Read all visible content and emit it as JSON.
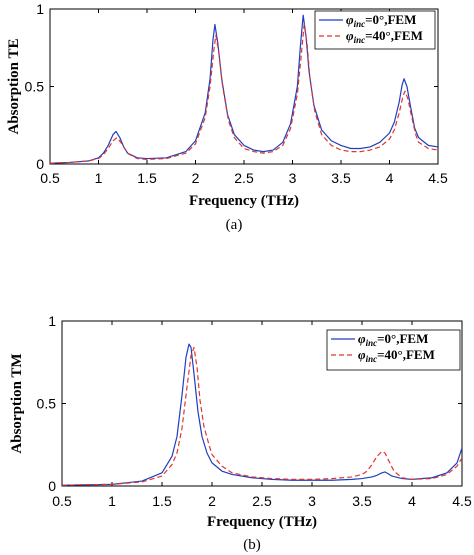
{
  "colors": {
    "series1": "#1f3fbf",
    "series2": "#e0342f",
    "axis": "#000000"
  },
  "chart_data": [
    {
      "type": "line",
      "panel_label": "(a)",
      "xlabel": "Frequency (THz)",
      "ylabel": "Absorption TE",
      "xlim": [
        0.5,
        4.5
      ],
      "ylim": [
        0,
        1
      ],
      "xticks": [
        "0.5",
        "1",
        "1.5",
        "2",
        "2.5",
        "3",
        "3.5",
        "4",
        "4.5"
      ],
      "yticks": [
        "0",
        "0.5",
        "1"
      ],
      "legend_position": "top-right",
      "grid": false,
      "series": [
        {
          "name": "φinc=0°,FEM",
          "legend_symbol": "φ",
          "legend_subscript": "inc",
          "legend_rest": "=0°,FEM",
          "style": "solid",
          "color": "#1f3fbf",
          "x": [
            0.5,
            0.7,
            0.9,
            1.0,
            1.05,
            1.1,
            1.15,
            1.18,
            1.22,
            1.26,
            1.3,
            1.4,
            1.5,
            1.7,
            1.9,
            2.0,
            2.1,
            2.15,
            2.18,
            2.2,
            2.23,
            2.27,
            2.33,
            2.4,
            2.5,
            2.6,
            2.7,
            2.8,
            2.9,
            2.98,
            3.05,
            3.08,
            3.11,
            3.14,
            3.17,
            3.22,
            3.3,
            3.4,
            3.5,
            3.6,
            3.7,
            3.8,
            3.9,
            4.0,
            4.05,
            4.1,
            4.13,
            4.15,
            4.18,
            4.22,
            4.26,
            4.3,
            4.4,
            4.5
          ],
          "y": [
            0.005,
            0.01,
            0.02,
            0.04,
            0.07,
            0.12,
            0.19,
            0.21,
            0.17,
            0.11,
            0.07,
            0.04,
            0.035,
            0.04,
            0.08,
            0.15,
            0.33,
            0.55,
            0.8,
            0.9,
            0.78,
            0.55,
            0.32,
            0.19,
            0.12,
            0.09,
            0.08,
            0.09,
            0.14,
            0.26,
            0.5,
            0.75,
            0.96,
            0.82,
            0.6,
            0.38,
            0.22,
            0.15,
            0.12,
            0.1,
            0.1,
            0.11,
            0.14,
            0.2,
            0.27,
            0.4,
            0.51,
            0.55,
            0.5,
            0.36,
            0.23,
            0.17,
            0.12,
            0.11
          ]
        },
        {
          "name": "φinc=40°,FEM",
          "legend_symbol": "φ",
          "legend_subscript": "inc",
          "legend_rest": "=40°,FEM",
          "style": "dashed",
          "color": "#e0342f",
          "x": [
            0.5,
            0.7,
            0.9,
            1.0,
            1.05,
            1.1,
            1.15,
            1.19,
            1.23,
            1.27,
            1.31,
            1.4,
            1.5,
            1.7,
            1.9,
            2.0,
            2.1,
            2.15,
            2.19,
            2.21,
            2.24,
            2.28,
            2.34,
            2.4,
            2.5,
            2.6,
            2.7,
            2.8,
            2.9,
            2.98,
            3.05,
            3.09,
            3.12,
            3.15,
            3.18,
            3.23,
            3.3,
            3.4,
            3.5,
            3.6,
            3.7,
            3.8,
            3.9,
            4.0,
            4.05,
            4.1,
            4.14,
            4.16,
            4.19,
            4.23,
            4.27,
            4.3,
            4.4,
            4.5
          ],
          "y": [
            0.005,
            0.01,
            0.02,
            0.035,
            0.06,
            0.1,
            0.15,
            0.17,
            0.14,
            0.1,
            0.065,
            0.035,
            0.03,
            0.035,
            0.07,
            0.13,
            0.3,
            0.5,
            0.74,
            0.83,
            0.72,
            0.5,
            0.28,
            0.17,
            0.1,
            0.08,
            0.07,
            0.08,
            0.12,
            0.23,
            0.45,
            0.7,
            0.9,
            0.78,
            0.55,
            0.34,
            0.19,
            0.12,
            0.09,
            0.08,
            0.08,
            0.09,
            0.11,
            0.16,
            0.22,
            0.33,
            0.44,
            0.47,
            0.42,
            0.3,
            0.19,
            0.14,
            0.1,
            0.09
          ]
        }
      ]
    },
    {
      "type": "line",
      "panel_label": "(b)",
      "xlabel": "Frequency (THz)",
      "ylabel": "Absorption TM",
      "xlim": [
        0.5,
        4.5
      ],
      "ylim": [
        0,
        1
      ],
      "xticks": [
        "0.5",
        "1",
        "1.5",
        "2",
        "2.5",
        "3",
        "3.5",
        "4",
        "4.5"
      ],
      "yticks": [
        "0",
        "0.5",
        "1"
      ],
      "legend_position": "top-right",
      "grid": false,
      "series": [
        {
          "name": "φinc=0°,FEM",
          "legend_symbol": "φ",
          "legend_subscript": "inc",
          "legend_rest": "=0°,FEM",
          "style": "solid",
          "color": "#1f3fbf",
          "x": [
            0.5,
            1.0,
            1.3,
            1.5,
            1.6,
            1.65,
            1.7,
            1.74,
            1.77,
            1.79,
            1.82,
            1.86,
            1.9,
            1.95,
            2.0,
            2.1,
            2.2,
            2.4,
            2.6,
            2.8,
            3.0,
            3.2,
            3.4,
            3.5,
            3.6,
            3.65,
            3.7,
            3.73,
            3.76,
            3.8,
            3.9,
            4.0,
            4.2,
            4.35,
            4.45,
            4.5
          ],
          "y": [
            0.005,
            0.01,
            0.03,
            0.08,
            0.18,
            0.3,
            0.55,
            0.78,
            0.86,
            0.84,
            0.68,
            0.45,
            0.3,
            0.2,
            0.14,
            0.09,
            0.07,
            0.05,
            0.04,
            0.035,
            0.035,
            0.035,
            0.04,
            0.045,
            0.055,
            0.065,
            0.08,
            0.085,
            0.075,
            0.06,
            0.045,
            0.04,
            0.05,
            0.08,
            0.14,
            0.23
          ]
        },
        {
          "name": "φinc=40°,FEM",
          "legend_symbol": "φ",
          "legend_subscript": "inc",
          "legend_rest": "=40°,FEM",
          "style": "dashed",
          "color": "#e0342f",
          "x": [
            0.5,
            1.0,
            1.3,
            1.5,
            1.6,
            1.65,
            1.7,
            1.75,
            1.79,
            1.82,
            1.85,
            1.88,
            1.92,
            1.97,
            2.0,
            2.1,
            2.2,
            2.4,
            2.6,
            2.8,
            3.0,
            3.2,
            3.4,
            3.5,
            3.55,
            3.6,
            3.65,
            3.7,
            3.73,
            3.77,
            3.82,
            3.9,
            4.0,
            4.2,
            4.35,
            4.45,
            4.5
          ],
          "y": [
            0.005,
            0.01,
            0.025,
            0.06,
            0.13,
            0.2,
            0.35,
            0.6,
            0.79,
            0.84,
            0.72,
            0.52,
            0.36,
            0.25,
            0.19,
            0.12,
            0.08,
            0.055,
            0.045,
            0.04,
            0.04,
            0.045,
            0.055,
            0.07,
            0.09,
            0.13,
            0.18,
            0.21,
            0.2,
            0.15,
            0.09,
            0.05,
            0.04,
            0.045,
            0.07,
            0.12,
            0.17
          ]
        }
      ]
    }
  ]
}
